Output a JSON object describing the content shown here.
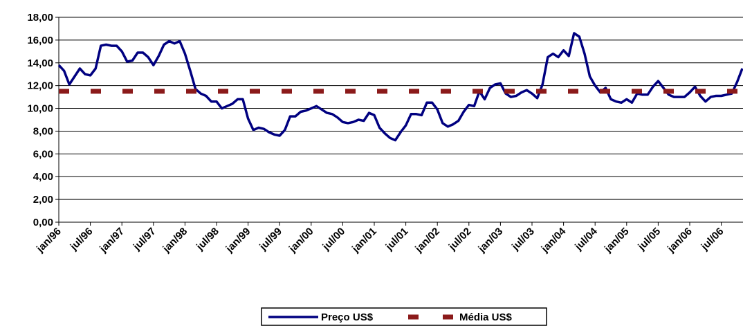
{
  "chart_data": {
    "type": "line",
    "categories": [
      "jan/96",
      null,
      null,
      null,
      null,
      null,
      "jul/96",
      null,
      null,
      null,
      null,
      null,
      "jan/97",
      null,
      null,
      null,
      null,
      null,
      "jul/97",
      null,
      null,
      null,
      null,
      null,
      "jan/98",
      null,
      null,
      null,
      null,
      null,
      "jul/98",
      null,
      null,
      null,
      null,
      null,
      "jan/99",
      null,
      null,
      null,
      null,
      null,
      "jul/99",
      null,
      null,
      null,
      null,
      null,
      "jan/00",
      null,
      null,
      null,
      null,
      null,
      "jul/00",
      null,
      null,
      null,
      null,
      null,
      "jan/01",
      null,
      null,
      null,
      null,
      null,
      "jul/01",
      null,
      null,
      null,
      null,
      null,
      "jan/02",
      null,
      null,
      null,
      null,
      null,
      "jul/02",
      null,
      null,
      null,
      null,
      null,
      "jan/03",
      null,
      null,
      null,
      null,
      null,
      "jul/03",
      null,
      null,
      null,
      null,
      null,
      "jan/04",
      null,
      null,
      null,
      null,
      null,
      "jul/04",
      null,
      null,
      null,
      null,
      null,
      "jan/05",
      null,
      null,
      null,
      null,
      null,
      "jul/05",
      null,
      null,
      null,
      null,
      null,
      "jan/06",
      null,
      null,
      null,
      null,
      null,
      "jul/06",
      null,
      null,
      null,
      null
    ],
    "series": [
      {
        "name": "Preço US$",
        "color": "#000080",
        "style": "solid",
        "values": [
          13.8,
          13.3,
          12.1,
          12.8,
          13.5,
          13.0,
          12.9,
          13.5,
          15.5,
          15.6,
          15.5,
          15.5,
          15.0,
          14.1,
          14.2,
          14.9,
          14.9,
          14.5,
          13.8,
          14.6,
          15.6,
          15.9,
          15.7,
          15.9,
          14.8,
          13.3,
          11.7,
          11.3,
          11.1,
          10.6,
          10.6,
          10.0,
          10.2,
          10.4,
          10.8,
          10.8,
          9.1,
          8.1,
          8.3,
          8.2,
          7.9,
          7.7,
          7.6,
          8.1,
          9.3,
          9.3,
          9.7,
          9.8,
          10.0,
          10.2,
          9.9,
          9.6,
          9.5,
          9.2,
          8.8,
          8.7,
          8.8,
          9.0,
          8.9,
          9.6,
          9.4,
          8.3,
          7.8,
          7.4,
          7.2,
          7.9,
          8.5,
          9.5,
          9.5,
          9.4,
          10.5,
          10.5,
          9.9,
          8.7,
          8.4,
          8.6,
          8.9,
          9.7,
          10.3,
          10.2,
          11.5,
          10.8,
          11.8,
          12.1,
          12.2,
          11.3,
          11.0,
          11.1,
          11.4,
          11.6,
          11.3,
          10.9,
          12.1,
          14.5,
          14.8,
          14.5,
          15.1,
          14.6,
          16.6,
          16.3,
          14.8,
          12.8,
          12.0,
          11.4,
          11.8,
          10.8,
          10.6,
          10.5,
          10.8,
          10.5,
          11.3,
          11.2,
          11.2,
          11.9,
          12.4,
          11.8,
          11.2,
          11.0,
          11.0,
          11.0,
          11.4,
          11.9,
          11.1,
          10.6,
          11.0,
          11.1,
          11.1,
          11.2,
          11.3,
          12.3,
          13.5
        ]
      },
      {
        "name": "Média US$",
        "color": "#8b1a1a",
        "style": "dashed",
        "values": [
          11.5,
          11.5,
          11.5,
          11.5,
          11.5,
          11.5,
          11.5,
          11.5,
          11.5,
          11.5,
          11.5,
          11.5,
          11.5,
          11.5,
          11.5,
          11.5,
          11.5,
          11.5,
          11.5,
          11.5,
          11.5,
          11.5,
          11.5,
          11.5,
          11.5,
          11.5,
          11.5,
          11.5,
          11.5,
          11.5,
          11.5,
          11.5,
          11.5,
          11.5,
          11.5,
          11.5,
          11.5,
          11.5,
          11.5,
          11.5,
          11.5,
          11.5,
          11.5,
          11.5,
          11.5,
          11.5,
          11.5,
          11.5,
          11.5,
          11.5,
          11.5,
          11.5,
          11.5,
          11.5,
          11.5,
          11.5,
          11.5,
          11.5,
          11.5,
          11.5,
          11.5,
          11.5,
          11.5,
          11.5,
          11.5,
          11.5,
          11.5,
          11.5,
          11.5,
          11.5,
          11.5,
          11.5,
          11.5,
          11.5,
          11.5,
          11.5,
          11.5,
          11.5,
          11.5,
          11.5,
          11.5,
          11.5,
          11.5,
          11.5,
          11.5,
          11.5,
          11.5,
          11.5,
          11.5,
          11.5,
          11.5,
          11.5,
          11.5,
          11.5,
          11.5,
          11.5,
          11.5,
          11.5,
          11.5,
          11.5,
          11.5,
          11.5,
          11.5,
          11.5,
          11.5,
          11.5,
          11.5,
          11.5,
          11.5,
          11.5,
          11.5,
          11.5,
          11.5,
          11.5,
          11.5,
          11.5,
          11.5,
          11.5,
          11.5,
          11.5,
          11.5,
          11.5,
          11.5,
          11.5,
          11.5,
          11.5,
          11.5,
          11.5,
          11.5,
          11.5,
          11.5
        ]
      }
    ],
    "ylim": [
      0,
      18
    ],
    "yticks": [
      {
        "value": 0,
        "label": "0,00"
      },
      {
        "value": 2,
        "label": "2,00"
      },
      {
        "value": 4,
        "label": "4,00"
      },
      {
        "value": 6,
        "label": "6,00"
      },
      {
        "value": 8,
        "label": "8,00"
      },
      {
        "value": 10,
        "label": "10,00"
      },
      {
        "value": 12,
        "label": "12,00"
      },
      {
        "value": 14,
        "label": "14,00"
      },
      {
        "value": 16,
        "label": "16,00"
      },
      {
        "value": 18,
        "label": "18,00"
      }
    ],
    "grid": true
  }
}
